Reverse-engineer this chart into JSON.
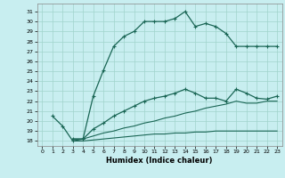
{
  "xlabel": "Humidex (Indice chaleur)",
  "bg_color": "#c8eef0",
  "grid_color": "#a0d4cc",
  "line_color": "#1a6655",
  "xlim": [
    -0.5,
    23.5
  ],
  "ylim": [
    17.5,
    31.8
  ],
  "xticks": [
    0,
    1,
    2,
    3,
    4,
    5,
    6,
    7,
    8,
    9,
    10,
    11,
    12,
    13,
    14,
    15,
    16,
    17,
    18,
    19,
    20,
    21,
    22,
    23
  ],
  "yticks": [
    18,
    19,
    20,
    21,
    22,
    23,
    24,
    25,
    26,
    27,
    28,
    29,
    30,
    31
  ],
  "curve1_x": [
    1,
    2,
    3,
    4,
    5,
    6,
    7,
    8,
    9,
    10,
    11,
    12,
    13,
    14,
    15,
    16,
    17,
    18,
    19,
    20,
    21,
    22,
    23
  ],
  "curve1_y": [
    20.5,
    19.5,
    18.0,
    18.2,
    22.5,
    25.1,
    27.5,
    28.5,
    29.0,
    30.0,
    30.0,
    30.0,
    30.3,
    31.0,
    29.5,
    29.8,
    29.5,
    28.8,
    27.5,
    27.5,
    27.5,
    27.5,
    27.5
  ],
  "curve2_x": [
    3,
    4,
    5,
    6,
    7,
    8,
    9,
    10,
    11,
    12,
    13,
    14,
    15,
    16,
    17,
    18,
    19,
    20,
    21,
    22,
    23
  ],
  "curve2_y": [
    18.2,
    18.2,
    19.2,
    19.8,
    20.5,
    21.0,
    21.5,
    22.0,
    22.3,
    22.5,
    22.8,
    23.2,
    22.8,
    22.3,
    22.3,
    22.0,
    23.2,
    22.8,
    22.3,
    22.2,
    22.5
  ],
  "curve3_x": [
    3,
    4,
    5,
    6,
    7,
    8,
    9,
    10,
    11,
    12,
    13,
    14,
    15,
    16,
    17,
    18,
    19,
    20,
    21,
    22,
    23
  ],
  "curve3_y": [
    18.2,
    18.2,
    18.5,
    18.8,
    19.0,
    19.3,
    19.5,
    19.8,
    20.0,
    20.3,
    20.5,
    20.8,
    21.0,
    21.3,
    21.5,
    21.7,
    22.0,
    21.8,
    21.8,
    22.0,
    22.0
  ],
  "curve4_x": [
    3,
    4,
    5,
    6,
    7,
    8,
    9,
    10,
    11,
    12,
    13,
    14,
    15,
    16,
    17,
    18,
    19,
    20,
    21,
    22,
    23
  ],
  "curve4_y": [
    18.0,
    18.0,
    18.1,
    18.2,
    18.3,
    18.4,
    18.5,
    18.6,
    18.7,
    18.7,
    18.8,
    18.8,
    18.9,
    18.9,
    19.0,
    19.0,
    19.0,
    19.0,
    19.0,
    19.0,
    19.0
  ]
}
